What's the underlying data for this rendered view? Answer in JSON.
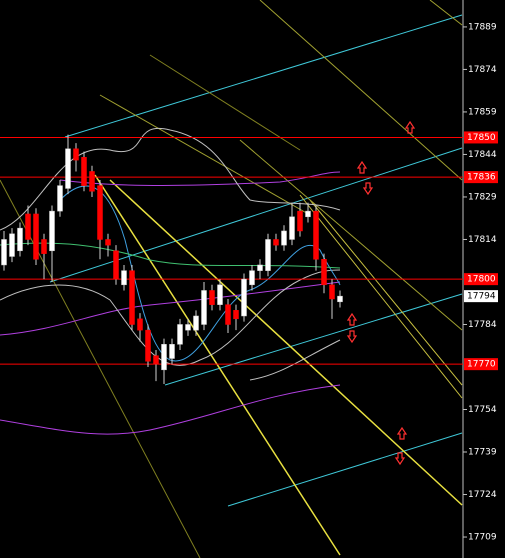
{
  "chart_data": {
    "type": "candlestick",
    "open": [
      17805,
      17808,
      17810,
      17823,
      17823,
      17814,
      17810,
      17824,
      17832,
      17846,
      17843,
      17838,
      17833,
      17814,
      17810,
      17798,
      17803,
      17786,
      17782,
      17773,
      17768,
      17772,
      17777,
      17782,
      17782,
      17784,
      17796,
      17791,
      17791,
      17789,
      17787,
      17798,
      17803,
      17803,
      17814,
      17812,
      17814,
      17824,
      17822,
      17824,
      17807,
      17798,
      17792
    ],
    "high": [
      17817,
      17818,
      17820,
      17826,
      17825,
      17816,
      17826,
      17835,
      17851,
      17848,
      17845,
      17840,
      17835,
      17816,
      17812,
      17805,
      17805,
      17788,
      17784,
      17775,
      17779,
      17779,
      17786,
      17786,
      17789,
      17799,
      17798,
      17800,
      17793,
      17791,
      17802,
      17805,
      17807,
      17816,
      17816,
      17819,
      17827,
      17827,
      17827,
      17826,
      17809,
      17800,
      17796
    ],
    "low": [
      17803,
      17806,
      17808,
      17812,
      17805,
      17800,
      17799,
      17822,
      17830,
      17838,
      17831,
      17829,
      17807,
      17808,
      17798,
      17796,
      17782,
      17778,
      17769,
      17764,
      17763,
      17770,
      17775,
      17780,
      17780,
      17782,
      17789,
      17789,
      17781,
      17782,
      17785,
      17796,
      17800,
      17801,
      17810,
      17810,
      17812,
      17815,
      17820,
      17803,
      17795,
      17786,
      17790
    ],
    "close": [
      17814,
      17816,
      17818,
      17814,
      17807,
      17809,
      17824,
      17833,
      17846,
      17842,
      17833,
      17831,
      17814,
      17812,
      17800,
      17803,
      17784,
      17782,
      17771,
      17770,
      17777,
      17777,
      17784,
      17784,
      17787,
      17796,
      17791,
      17798,
      17784,
      17786,
      17800,
      17803,
      17805,
      17814,
      17812,
      17817,
      17822,
      17817,
      17824,
      17807,
      17798,
      17793,
      17794
    ],
    "up_color": "#ffffff",
    "down_color": "#ff0000",
    "ylim": [
      17701.6,
      17898.5
    ],
    "yticks": [
      17889,
      17874,
      17859,
      17844,
      17829,
      17814,
      17784,
      17754,
      17739,
      17724,
      17709
    ],
    "level_lines": [
      17850,
      17836,
      17800,
      17770
    ],
    "level_color": "#ff0000",
    "last_price": 17794
  }
}
